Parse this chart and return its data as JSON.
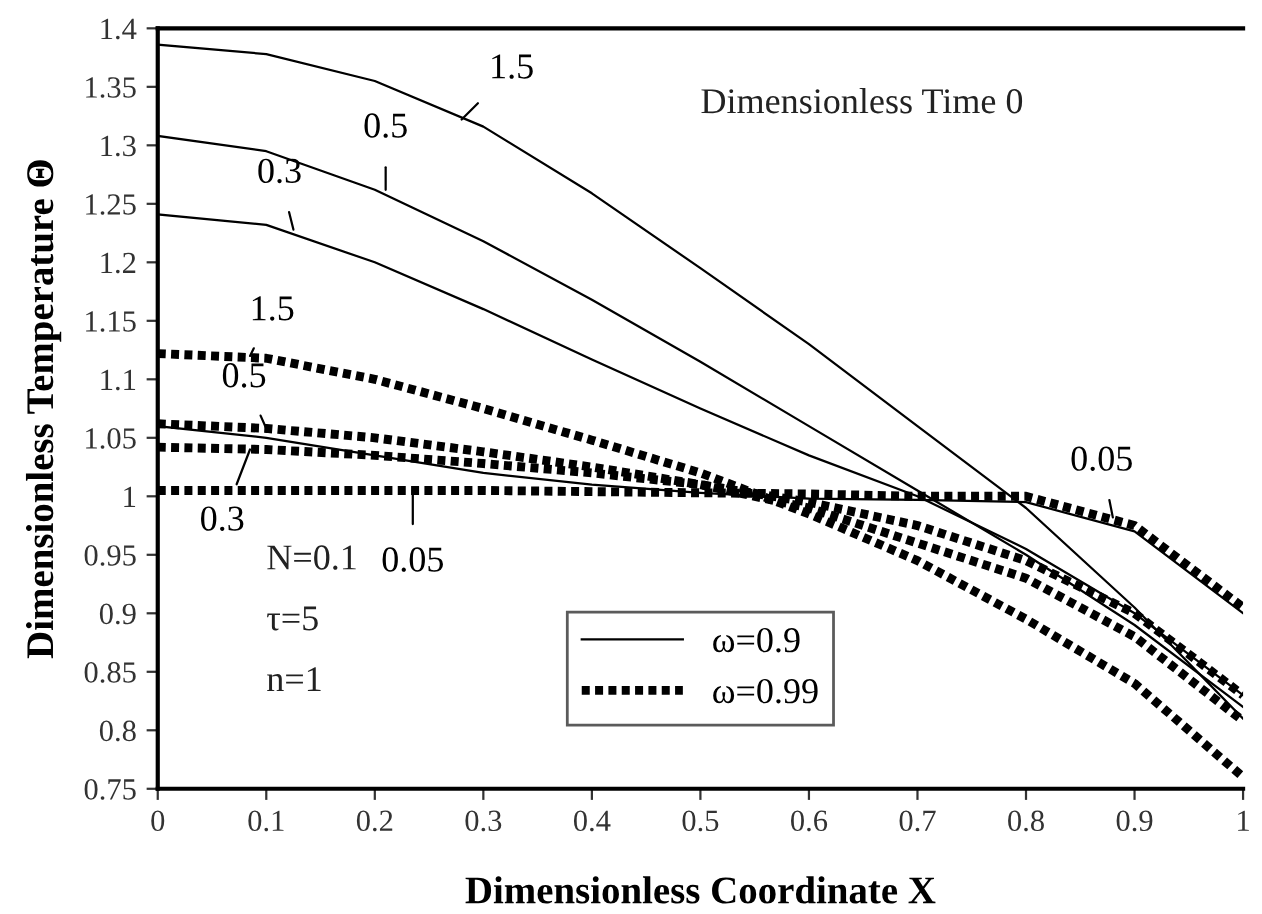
{
  "chart_data": {
    "type": "line",
    "xlabel": "Dimensionless Coordinate X",
    "ylabel": "Dimensionless Temperature Θ",
    "x": [
      0,
      0.1,
      0.2,
      0.3,
      0.4,
      0.5,
      0.6,
      0.7,
      0.8,
      0.9,
      1.0
    ],
    "series": [
      {
        "name": "ω=0.9",
        "color": "#000000",
        "line_style": "solid",
        "values": [
          1.386,
          1.378,
          1.355,
          1.316,
          1.259,
          1.195,
          1.13,
          1.06,
          0.99,
          0.905,
          0.81
        ]
      },
      {
        "color": "#000000",
        "line_style": "solid",
        "values": [
          1.308,
          1.295,
          1.262,
          1.218,
          1.168,
          1.115,
          1.06,
          1.005,
          0.95,
          0.89,
          0.82
        ]
      },
      {
        "color": "#000000",
        "line_style": "solid",
        "values": [
          1.241,
          1.232,
          1.2,
          1.16,
          1.117,
          1.075,
          1.035,
          1.0,
          0.955,
          0.9,
          0.83
        ]
      },
      {
        "color": "#000000",
        "line_style": "solid",
        "values": [
          1.06,
          1.05,
          1.035,
          1.02,
          1.01,
          1.003,
          0.998,
          0.997,
          0.995,
          0.97,
          0.9
        ]
      },
      {
        "name": "ω=0.99",
        "color": "#000000",
        "line_style": "dotted",
        "values": [
          1.122,
          1.118,
          1.1,
          1.075,
          1.048,
          1.02,
          0.985,
          0.945,
          0.895,
          0.84,
          0.76
        ]
      },
      {
        "color": "#000000",
        "line_style": "dotted",
        "values": [
          1.062,
          1.058,
          1.05,
          1.038,
          1.025,
          1.01,
          0.99,
          0.96,
          0.93,
          0.88,
          0.808
        ]
      },
      {
        "color": "#000000",
        "line_style": "dotted",
        "values": [
          1.042,
          1.04,
          1.035,
          1.028,
          1.02,
          1.01,
          0.995,
          0.975,
          0.945,
          0.9,
          0.83
        ]
      },
      {
        "color": "#000000",
        "line_style": "dotted",
        "values": [
          1.005,
          1.005,
          1.005,
          1.005,
          1.004,
          1.003,
          1.002,
          1.0,
          1.0,
          0.975,
          0.905
        ]
      }
    ],
    "xlim": [
      0,
      1
    ],
    "xticks": [
      0,
      0.1,
      0.2,
      0.3,
      0.4,
      0.5,
      0.6,
      0.7,
      0.8,
      0.9,
      1
    ],
    "ylim": [
      0.75,
      1.4
    ],
    "yticks": [
      0.75,
      0.8,
      0.85,
      0.9,
      0.95,
      1,
      1.05,
      1.1,
      1.15,
      1.2,
      1.25,
      1.3,
      1.35,
      1.4
    ],
    "grid": false,
    "legend": "bottom",
    "annotations": [
      {
        "text": "1.5",
        "x": 0.28,
        "y": 1.322
      },
      {
        "text": "0.5",
        "x": 0.21,
        "y": 1.262
      },
      {
        "text": "0.3",
        "x": 0.125,
        "y": 1.228
      },
      {
        "text": "1.5",
        "x": 0.085,
        "y": 1.12
      },
      {
        "text": "0.5",
        "x": 0.1,
        "y": 1.058
      },
      {
        "text": "0.3",
        "x": 0.085,
        "y": 1.04
      },
      {
        "text": "0.05",
        "x": 0.235,
        "y": 1.005
      },
      {
        "text": "0.05",
        "x": 0.88,
        "y": 0.982
      },
      "Dimensionless Time 0",
      "N=0.1",
      "τ=5",
      "n=1"
    ]
  }
}
